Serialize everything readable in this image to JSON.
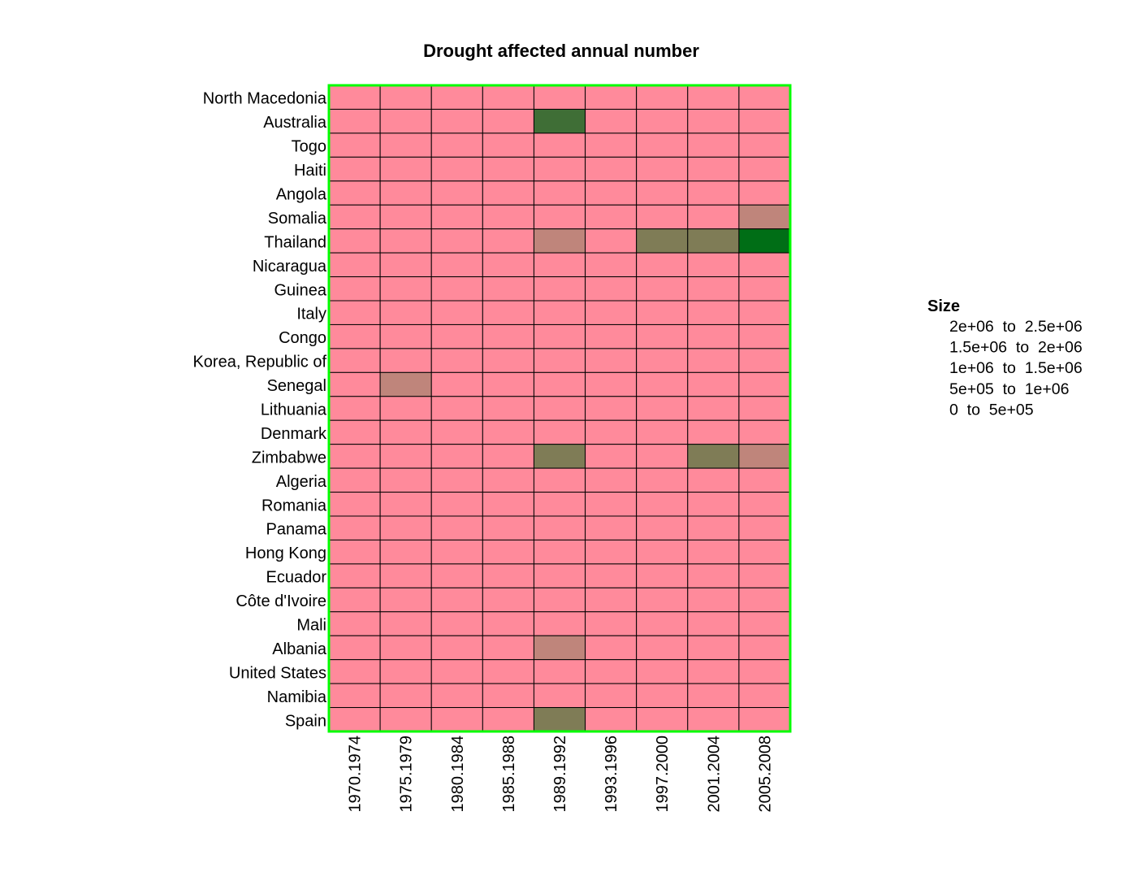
{
  "chart_data": {
    "type": "heatmap",
    "title": "Drought affected annual number",
    "rows": [
      "North Macedonia",
      "Australia",
      "Togo",
      "Haiti",
      "Angola",
      "Somalia",
      "Thailand",
      "Nicaragua",
      "Guinea",
      "Italy",
      "Congo",
      "Korea, Republic of",
      "Senegal",
      "Lithuania",
      "Denmark",
      "Zimbabwe",
      "Algeria",
      "Romania",
      "Panama",
      "Hong Kong",
      "Ecuador",
      "Côte d'Ivoire",
      "Mali",
      "Albania",
      "United States",
      "Namibia",
      "Spain"
    ],
    "columns": [
      "1970.1974",
      "1975.1979",
      "1980.1984",
      "1985.1988",
      "1989.1992",
      "1993.1996",
      "1997.2000",
      "2001.2004",
      "2005.2008"
    ],
    "values": [
      [
        0,
        0,
        0,
        0,
        0,
        0,
        0,
        0,
        0
      ],
      [
        0,
        0,
        0,
        0,
        1750000,
        0,
        0,
        0,
        0
      ],
      [
        0,
        0,
        0,
        0,
        0,
        0,
        0,
        0,
        0
      ],
      [
        0,
        0,
        0,
        0,
        0,
        0,
        0,
        0,
        0
      ],
      [
        0,
        0,
        0,
        0,
        0,
        0,
        0,
        0,
        0
      ],
      [
        0,
        0,
        0,
        0,
        0,
        0,
        0,
        0,
        750000
      ],
      [
        0,
        0,
        0,
        0,
        750000,
        0,
        1250000,
        1250000,
        2250000
      ],
      [
        0,
        0,
        0,
        0,
        0,
        0,
        0,
        0,
        0
      ],
      [
        0,
        0,
        0,
        0,
        0,
        0,
        0,
        0,
        0
      ],
      [
        0,
        0,
        0,
        0,
        0,
        0,
        0,
        0,
        0
      ],
      [
        0,
        0,
        0,
        0,
        0,
        0,
        0,
        0,
        0
      ],
      [
        0,
        0,
        0,
        0,
        0,
        0,
        0,
        0,
        0
      ],
      [
        0,
        750000,
        0,
        0,
        0,
        0,
        0,
        0,
        0
      ],
      [
        0,
        0,
        0,
        0,
        0,
        0,
        0,
        0,
        0
      ],
      [
        0,
        0,
        0,
        0,
        0,
        0,
        0,
        0,
        0
      ],
      [
        0,
        0,
        0,
        0,
        1250000,
        0,
        0,
        1250000,
        750000
      ],
      [
        0,
        0,
        0,
        0,
        0,
        0,
        0,
        0,
        0
      ],
      [
        0,
        0,
        0,
        0,
        0,
        0,
        0,
        0,
        0
      ],
      [
        0,
        0,
        0,
        0,
        0,
        0,
        0,
        0,
        0
      ],
      [
        0,
        0,
        0,
        0,
        0,
        0,
        0,
        0,
        0
      ],
      [
        0,
        0,
        0,
        0,
        0,
        0,
        0,
        0,
        0
      ],
      [
        0,
        0,
        0,
        0,
        0,
        0,
        0,
        0,
        0
      ],
      [
        0,
        0,
        0,
        0,
        0,
        0,
        0,
        0,
        0
      ],
      [
        0,
        0,
        0,
        0,
        750000,
        0,
        0,
        0,
        0
      ],
      [
        0,
        0,
        0,
        0,
        0,
        0,
        0,
        0,
        0
      ],
      [
        0,
        0,
        0,
        0,
        0,
        0,
        0,
        0,
        0
      ],
      [
        0,
        0,
        0,
        0,
        1250000,
        0,
        0,
        0,
        0
      ]
    ],
    "legend": {
      "title": "Size",
      "placement": "right",
      "bins": [
        {
          "label": "2e+06  to  2.5e+06",
          "min": 2000000,
          "max": 2500000,
          "color": "#006E16"
        },
        {
          "label": "1.5e+06  to  2e+06",
          "min": 1500000,
          "max": 2000000,
          "color": "#3F6E36"
        },
        {
          "label": "1e+06  to  1.5e+06",
          "min": 1000000,
          "max": 1500000,
          "color": "#7F7C56"
        },
        {
          "label": "5e+05  to  1e+06",
          "min": 500000,
          "max": 1000000,
          "color": "#BF857B"
        },
        {
          "label": "0  to  5e+05",
          "min": 0,
          "max": 500000,
          "color": "#FF8A9B"
        }
      ]
    },
    "grid": true,
    "plot_border_color": "#00FF00",
    "cell_border_color": "#000000"
  }
}
